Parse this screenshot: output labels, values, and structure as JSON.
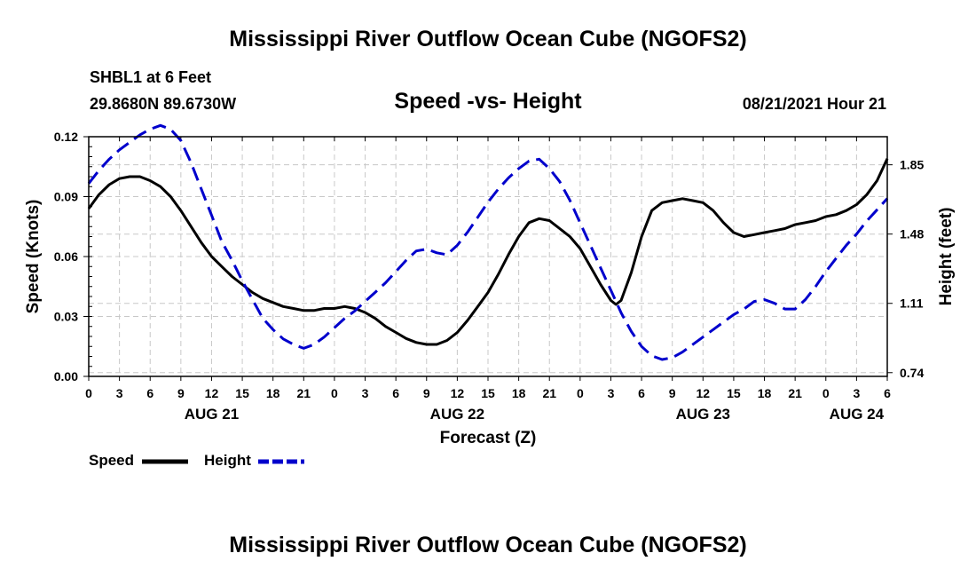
{
  "page_title": "Mississippi River Outflow Ocean Cube (NGOFS2)",
  "footer_title": "Mississippi River Outflow Ocean Cube (NGOFS2)",
  "station": "SHBL1 at 6 Feet",
  "coordinates": "29.8680N  89.6730W",
  "timestamp": "08/21/2021 Hour 21",
  "chart_data": {
    "type": "line",
    "title": "Speed -vs- Height",
    "xlabel": "Forecast (Z)",
    "ylabel": "Speed (Knots)",
    "y2label": "Height (feet)",
    "xlim": [
      0,
      78
    ],
    "ylim": [
      0,
      0.12
    ],
    "y2lim": [
      0.72,
      2.0
    ],
    "x_ticks": [
      {
        "x": 0,
        "label": "0"
      },
      {
        "x": 3,
        "label": "3"
      },
      {
        "x": 6,
        "label": "6"
      },
      {
        "x": 9,
        "label": "9"
      },
      {
        "x": 12,
        "label": "12"
      },
      {
        "x": 15,
        "label": "15"
      },
      {
        "x": 18,
        "label": "18"
      },
      {
        "x": 21,
        "label": "21"
      },
      {
        "x": 24,
        "label": "0"
      },
      {
        "x": 27,
        "label": "3"
      },
      {
        "x": 30,
        "label": "6"
      },
      {
        "x": 33,
        "label": "9"
      },
      {
        "x": 36,
        "label": "12"
      },
      {
        "x": 39,
        "label": "15"
      },
      {
        "x": 42,
        "label": "18"
      },
      {
        "x": 45,
        "label": "21"
      },
      {
        "x": 48,
        "label": "0"
      },
      {
        "x": 51,
        "label": "3"
      },
      {
        "x": 54,
        "label": "6"
      },
      {
        "x": 57,
        "label": "9"
      },
      {
        "x": 60,
        "label": "12"
      },
      {
        "x": 63,
        "label": "15"
      },
      {
        "x": 66,
        "label": "18"
      },
      {
        "x": 69,
        "label": "21"
      },
      {
        "x": 72,
        "label": "0"
      },
      {
        "x": 75,
        "label": "3"
      },
      {
        "x": 78,
        "label": "6"
      }
    ],
    "date_labels": [
      {
        "x": 12,
        "label": "AUG 21"
      },
      {
        "x": 36,
        "label": "AUG 22"
      },
      {
        "x": 60,
        "label": "AUG 23"
      },
      {
        "x": 75,
        "label": "AUG 24"
      }
    ],
    "y_ticks": [
      0,
      0.03,
      0.06,
      0.09,
      0.12
    ],
    "y_tick_labels": [
      "0.00",
      "0.03",
      "0.06",
      "0.09",
      "0.12"
    ],
    "y2_ticks": [
      0.74,
      1.11,
      1.48,
      1.85
    ],
    "y2_tick_labels": [
      "0.74",
      "1.11",
      "1.48",
      "1.85"
    ],
    "grid": true,
    "series": [
      {
        "name": "Speed",
        "axis": "left",
        "color": "#000000",
        "style": "solid",
        "points": [
          [
            0,
            0.084
          ],
          [
            1,
            0.091
          ],
          [
            2,
            0.096
          ],
          [
            3,
            0.099
          ],
          [
            4,
            0.1
          ],
          [
            5,
            0.1
          ],
          [
            6,
            0.098
          ],
          [
            7,
            0.095
          ],
          [
            8,
            0.09
          ],
          [
            9,
            0.083
          ],
          [
            10,
            0.075
          ],
          [
            11,
            0.067
          ],
          [
            12,
            0.06
          ],
          [
            13,
            0.055
          ],
          [
            14,
            0.05
          ],
          [
            15,
            0.046
          ],
          [
            16,
            0.042
          ],
          [
            17,
            0.039
          ],
          [
            18,
            0.037
          ],
          [
            19,
            0.035
          ],
          [
            20,
            0.034
          ],
          [
            21,
            0.033
          ],
          [
            22,
            0.033
          ],
          [
            23,
            0.034
          ],
          [
            24,
            0.034
          ],
          [
            25,
            0.035
          ],
          [
            26,
            0.034
          ],
          [
            27,
            0.032
          ],
          [
            28,
            0.029
          ],
          [
            29,
            0.025
          ],
          [
            30,
            0.022
          ],
          [
            31,
            0.019
          ],
          [
            32,
            0.017
          ],
          [
            33,
            0.016
          ],
          [
            34,
            0.016
          ],
          [
            35,
            0.018
          ],
          [
            36,
            0.022
          ],
          [
            37,
            0.028
          ],
          [
            38,
            0.035
          ],
          [
            39,
            0.042
          ],
          [
            40,
            0.051
          ],
          [
            41,
            0.061
          ],
          [
            42,
            0.07
          ],
          [
            43,
            0.077
          ],
          [
            44,
            0.079
          ],
          [
            45,
            0.078
          ],
          [
            46,
            0.074
          ],
          [
            47,
            0.07
          ],
          [
            48,
            0.064
          ],
          [
            49,
            0.055
          ],
          [
            50,
            0.046
          ],
          [
            51,
            0.038
          ],
          [
            51.5,
            0.036
          ],
          [
            52,
            0.038
          ],
          [
            53,
            0.052
          ],
          [
            54,
            0.07
          ],
          [
            55,
            0.083
          ],
          [
            56,
            0.087
          ],
          [
            57,
            0.088
          ],
          [
            58,
            0.089
          ],
          [
            59,
            0.088
          ],
          [
            60,
            0.087
          ],
          [
            61,
            0.083
          ],
          [
            62,
            0.077
          ],
          [
            63,
            0.072
          ],
          [
            64,
            0.07
          ],
          [
            65,
            0.071
          ],
          [
            66,
            0.072
          ],
          [
            67,
            0.073
          ],
          [
            68,
            0.074
          ],
          [
            69,
            0.076
          ],
          [
            70,
            0.077
          ],
          [
            71,
            0.078
          ],
          [
            72,
            0.08
          ],
          [
            73,
            0.081
          ],
          [
            74,
            0.083
          ],
          [
            75,
            0.086
          ],
          [
            76,
            0.091
          ],
          [
            77,
            0.098
          ],
          [
            78,
            0.109
          ]
        ]
      },
      {
        "name": "Height",
        "axis": "right",
        "color": "#0000cc",
        "style": "dashed",
        "points": [
          [
            0,
            1.75
          ],
          [
            1,
            1.82
          ],
          [
            2,
            1.88
          ],
          [
            3,
            1.93
          ],
          [
            4,
            1.97
          ],
          [
            5,
            2.01
          ],
          [
            6,
            2.04
          ],
          [
            7,
            2.06
          ],
          [
            8,
            2.04
          ],
          [
            9,
            1.98
          ],
          [
            10,
            1.86
          ],
          [
            11,
            1.72
          ],
          [
            12,
            1.58
          ],
          [
            13,
            1.44
          ],
          [
            14,
            1.34
          ],
          [
            15,
            1.23
          ],
          [
            16,
            1.13
          ],
          [
            17,
            1.03
          ],
          [
            18,
            0.97
          ],
          [
            19,
            0.92
          ],
          [
            20,
            0.89
          ],
          [
            21,
            0.87
          ],
          [
            22,
            0.89
          ],
          [
            23,
            0.93
          ],
          [
            24,
            0.98
          ],
          [
            25,
            1.03
          ],
          [
            26,
            1.07
          ],
          [
            27,
            1.12
          ],
          [
            28,
            1.17
          ],
          [
            29,
            1.22
          ],
          [
            30,
            1.28
          ],
          [
            31,
            1.34
          ],
          [
            32,
            1.39
          ],
          [
            33,
            1.4
          ],
          [
            34,
            1.38
          ],
          [
            35,
            1.37
          ],
          [
            36,
            1.42
          ],
          [
            37,
            1.49
          ],
          [
            38,
            1.57
          ],
          [
            39,
            1.65
          ],
          [
            40,
            1.72
          ],
          [
            41,
            1.78
          ],
          [
            42,
            1.83
          ],
          [
            43,
            1.87
          ],
          [
            44,
            1.88
          ],
          [
            45,
            1.83
          ],
          [
            46,
            1.76
          ],
          [
            47,
            1.66
          ],
          [
            48,
            1.54
          ],
          [
            49,
            1.42
          ],
          [
            50,
            1.3
          ],
          [
            51,
            1.18
          ],
          [
            52,
            1.06
          ],
          [
            53,
            0.96
          ],
          [
            54,
            0.88
          ],
          [
            55,
            0.83
          ],
          [
            56,
            0.81
          ],
          [
            57,
            0.82
          ],
          [
            58,
            0.85
          ],
          [
            59,
            0.89
          ],
          [
            60,
            0.93
          ],
          [
            61,
            0.97
          ],
          [
            62,
            1.01
          ],
          [
            63,
            1.05
          ],
          [
            64,
            1.08
          ],
          [
            65,
            1.12
          ],
          [
            66,
            1.13
          ],
          [
            67,
            1.11
          ],
          [
            68,
            1.08
          ],
          [
            69,
            1.08
          ],
          [
            70,
            1.13
          ],
          [
            71,
            1.2
          ],
          [
            72,
            1.28
          ],
          [
            73,
            1.35
          ],
          [
            74,
            1.42
          ],
          [
            75,
            1.48
          ],
          [
            76,
            1.55
          ],
          [
            77,
            1.61
          ],
          [
            78,
            1.67
          ]
        ]
      }
    ],
    "legend": [
      {
        "name": "Speed",
        "color": "#000000",
        "style": "solid"
      },
      {
        "name": "Height",
        "color": "#0000cc",
        "style": "dashed"
      }
    ]
  }
}
